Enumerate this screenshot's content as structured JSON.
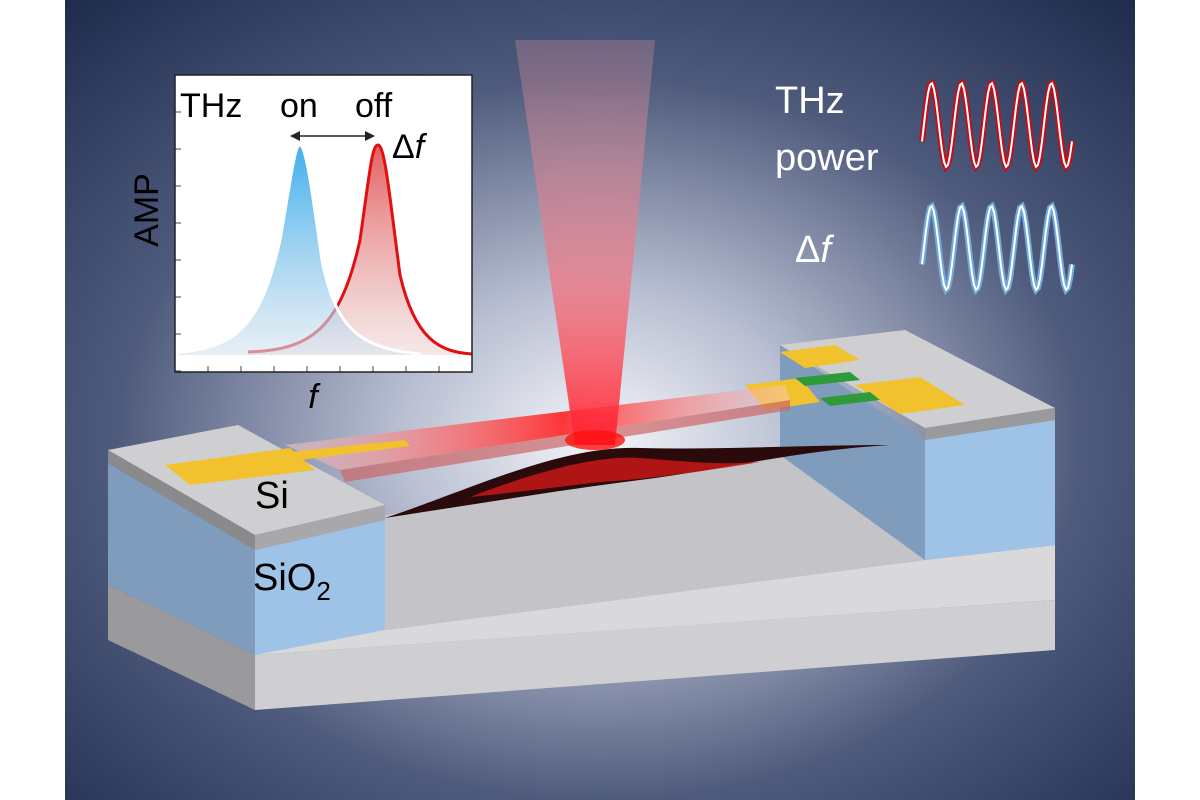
{
  "inset": {
    "curve_labels": {
      "left": "THz",
      "on": "on",
      "off": "off"
    },
    "shift": {
      "symbol": "Δ",
      "variable": "f"
    },
    "y_axis_label": "AMP",
    "x_axis_label": "f"
  },
  "legend": {
    "power_line1": "THz",
    "power_line2": "power",
    "shift": {
      "symbol": "Δ",
      "variable": "f"
    }
  },
  "layers": {
    "top": "Si",
    "middle": {
      "base": "SiO",
      "subscript": "2"
    }
  }
}
